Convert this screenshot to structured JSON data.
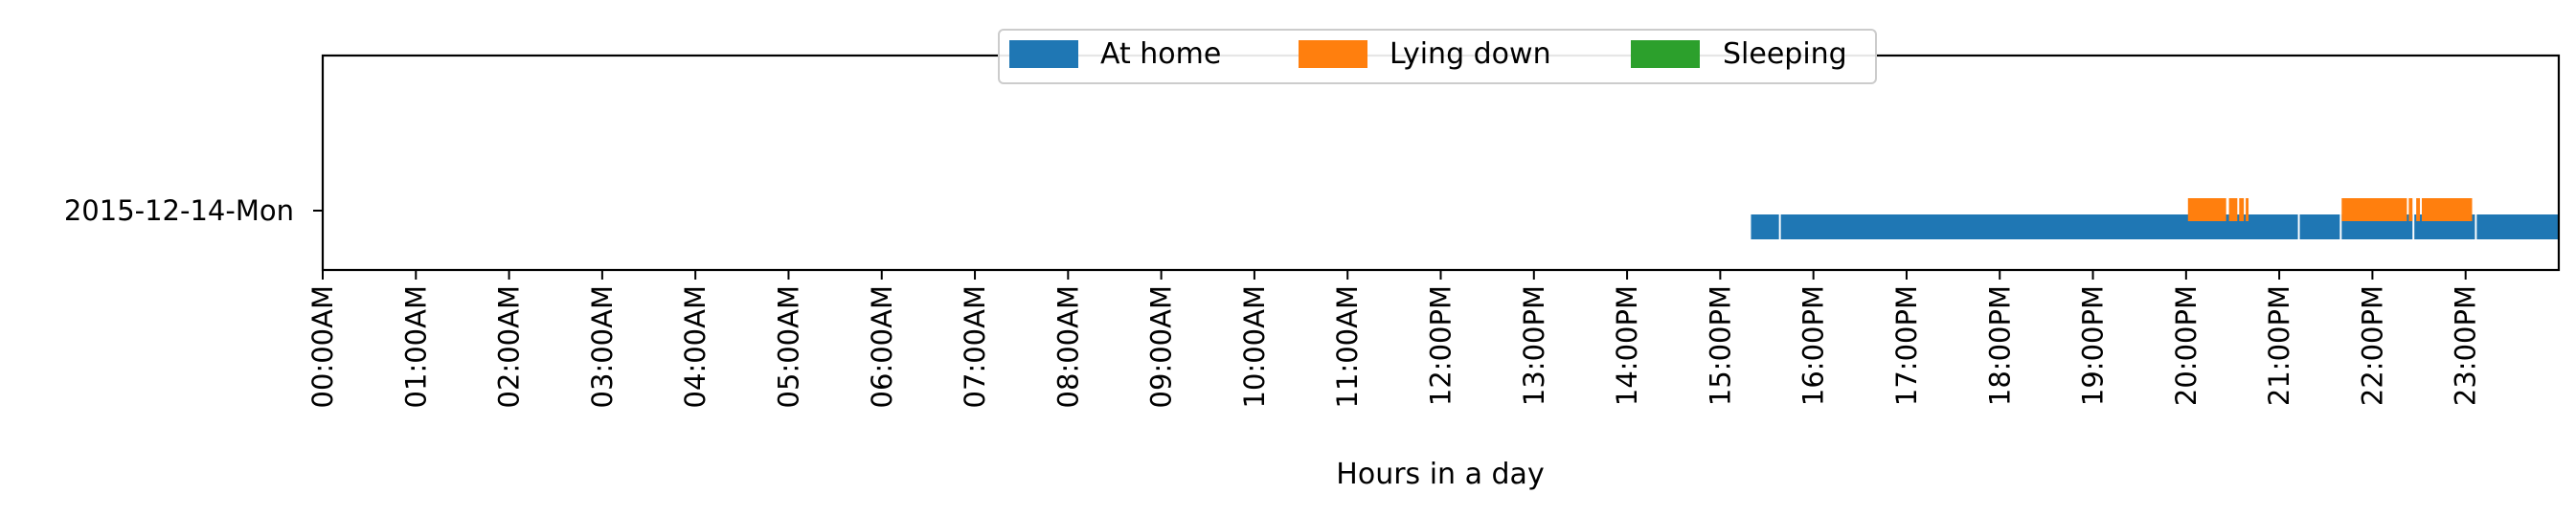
{
  "chart_data": {
    "type": "bar",
    "subtype": "horizontal-timeline",
    "title": "",
    "xlabel": "Hours in a day",
    "ylabel": "",
    "xlim": [
      0,
      24
    ],
    "xticks": [
      0,
      1,
      2,
      3,
      4,
      5,
      6,
      7,
      8,
      9,
      10,
      11,
      12,
      13,
      14,
      15,
      16,
      17,
      18,
      19,
      20,
      21,
      22,
      23
    ],
    "xtick_labels": [
      "00:00AM",
      "01:00AM",
      "02:00AM",
      "03:00AM",
      "04:00AM",
      "05:00AM",
      "06:00AM",
      "07:00AM",
      "08:00AM",
      "09:00AM",
      "10:00AM",
      "11:00AM",
      "12:00PM",
      "13:00PM",
      "14:00PM",
      "15:00PM",
      "16:00PM",
      "17:00PM",
      "18:00PM",
      "19:00PM",
      "20:00PM",
      "21:00PM",
      "22:00PM",
      "23:00PM"
    ],
    "categories": [
      "2015-12-14-Mon"
    ],
    "legend_position": "top-center",
    "grid": false,
    "series": [
      {
        "name": "At home",
        "color": "#1f77b4",
        "intervals_hours": [
          [
            15.33,
            15.63
          ],
          [
            15.65,
            21.2
          ],
          [
            21.22,
            21.65
          ],
          [
            21.67,
            22.43
          ],
          [
            22.45,
            23.1
          ],
          [
            23.12,
            24.0
          ]
        ]
      },
      {
        "name": "Lying down",
        "color": "#ff7f0e",
        "intervals_hours": [
          [
            20.02,
            20.43
          ],
          [
            20.46,
            20.55
          ],
          [
            20.57,
            20.62
          ],
          [
            20.64,
            20.67
          ],
          [
            21.67,
            22.37
          ],
          [
            22.39,
            22.43
          ],
          [
            22.47,
            22.51
          ],
          [
            22.53,
            23.07
          ]
        ]
      },
      {
        "name": "Sleeping",
        "color": "#2ca02c",
        "intervals_hours": []
      }
    ]
  }
}
